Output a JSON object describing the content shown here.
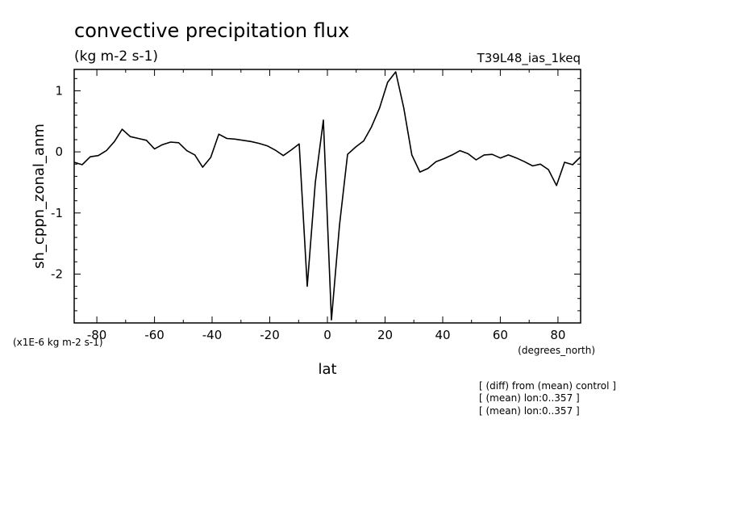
{
  "chart_data": {
    "type": "line",
    "title": "convective precipitation flux",
    "subtitle": "(kg m-2 s-1)",
    "run_label": "T39L48_ias_1keq",
    "xlabel": "lat",
    "ylabel": "sh_cppn_zonal_anm",
    "x_units": "(degrees_north)",
    "y_units": "(x1E-6 kg m-2 s-1)",
    "notes": [
      "[ (diff) from (mean) control ]",
      "[ (mean) lon:0..357 ]",
      "[ (mean) lon:0..357 ]"
    ],
    "xlim": [
      -87.86,
      87.86
    ],
    "ylim": [
      -2.8,
      1.35
    ],
    "xticks": [
      -80,
      -60,
      -40,
      -20,
      0,
      20,
      40,
      60,
      80
    ],
    "xtick_labels": [
      "-80",
      "-60",
      "-40",
      "-20",
      "0",
      "20",
      "40",
      "60",
      "80"
    ],
    "yticks": [
      -2,
      -1,
      0,
      1
    ],
    "ytick_labels": [
      "-2",
      "-1",
      "0",
      "1"
    ],
    "series": [
      {
        "x": [
          -87.86,
          -85.1,
          -82.3,
          -79.5,
          -76.7,
          -73.9,
          -71.2,
          -68.4,
          -65.6,
          -62.8,
          -60.0,
          -57.2,
          -54.4,
          -51.6,
          -48.8,
          -46.0,
          -43.3,
          -40.5,
          -37.7,
          -34.9,
          -32.1,
          -29.3,
          -26.5,
          -23.7,
          -20.9,
          -18.1,
          -15.3,
          -12.6,
          -9.8,
          -7.0,
          -4.2,
          -1.4,
          1.4,
          4.2,
          7.0,
          9.8,
          12.6,
          15.3,
          18.1,
          20.9,
          23.7,
          26.5,
          29.3,
          32.1,
          34.9,
          37.7,
          40.5,
          43.3,
          46.0,
          48.8,
          51.6,
          54.4,
          57.2,
          60.0,
          62.8,
          65.6,
          68.4,
          71.2,
          73.9,
          76.7,
          79.5,
          82.3,
          85.1,
          87.86
        ],
        "y": [
          -0.17,
          -0.21,
          -0.08,
          -0.06,
          0.02,
          0.17,
          0.37,
          0.25,
          0.22,
          0.19,
          0.05,
          0.12,
          0.16,
          0.15,
          0.02,
          -0.05,
          -0.25,
          -0.09,
          0.29,
          0.22,
          0.21,
          0.19,
          0.17,
          0.14,
          0.1,
          0.03,
          -0.06,
          0.03,
          0.13,
          -2.2,
          -0.5,
          0.52,
          -2.75,
          -1.2,
          -0.04,
          0.08,
          0.18,
          0.41,
          0.72,
          1.14,
          1.31,
          0.72,
          -0.05,
          -0.33,
          -0.27,
          -0.16,
          -0.11,
          -0.05,
          0.02,
          -0.03,
          -0.13,
          -0.05,
          -0.04,
          -0.1,
          -0.05,
          -0.1,
          -0.16,
          -0.23,
          -0.2,
          -0.29,
          -0.55,
          -0.17,
          -0.21,
          -0.08
        ]
      }
    ]
  }
}
